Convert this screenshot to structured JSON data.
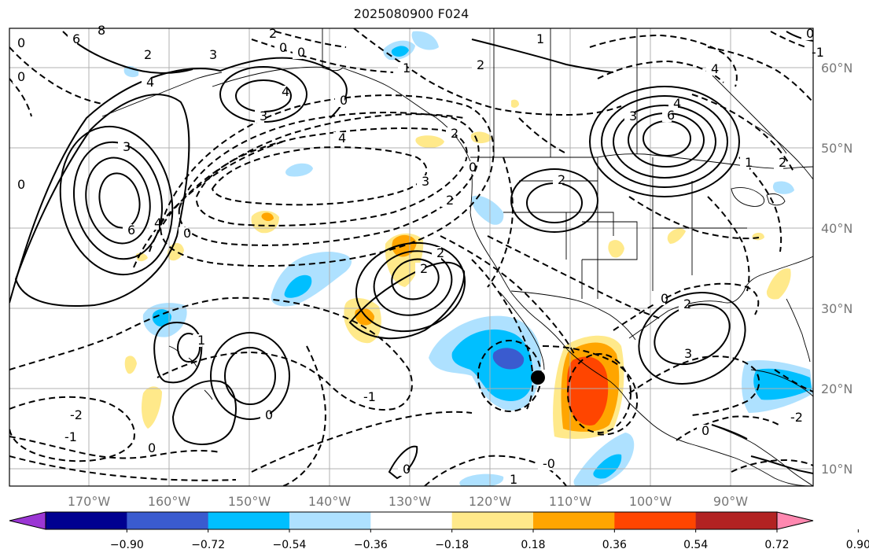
{
  "title": "2025080900 F024",
  "lon_labels": [
    "170°W",
    "160°W",
    "150°W",
    "140°W",
    "130°W",
    "120°W",
    "110°W",
    "100°W",
    "90°W"
  ],
  "lat_labels": [
    "60°N",
    "50°N",
    "40°N",
    "30°N",
    "20°N",
    "10°N"
  ],
  "colorbar": {
    "ticks": [
      "−0.90",
      "−0.72",
      "−0.54",
      "−0.36",
      "−0.18",
      "0.18",
      "0.36",
      "0.54",
      "0.72",
      "0.90"
    ],
    "colors": [
      "#9b36d4",
      "#000090",
      "#3a5bcf",
      "#00bfff",
      "#aee1ff",
      "#ffffff",
      "#ffe98a",
      "#ffa500",
      "#ff4500",
      "#b22222",
      "#ff88b0"
    ]
  },
  "contour_labels": [
    {
      "text": "0"
    },
    {
      "text": "6"
    },
    {
      "text": "8"
    },
    {
      "text": "0"
    },
    {
      "text": "2"
    },
    {
      "text": "4"
    },
    {
      "text": "3"
    },
    {
      "text": "4"
    },
    {
      "text": "3"
    },
    {
      "text": "0"
    },
    {
      "text": "4"
    },
    {
      "text": "0"
    },
    {
      "text": "3"
    },
    {
      "text": "6"
    },
    {
      "text": "4"
    },
    {
      "text": "0"
    },
    {
      "text": "2"
    },
    {
      "text": "0"
    },
    {
      "text": "1"
    },
    {
      "text": "2"
    },
    {
      "text": "2"
    },
    {
      "text": "3"
    },
    {
      "text": "2"
    },
    {
      "text": "0"
    },
    {
      "text": "2"
    },
    {
      "text": "2"
    },
    {
      "text": "4"
    },
    {
      "text": "3"
    },
    {
      "text": "6"
    },
    {
      "text": "4"
    },
    {
      "text": "2"
    },
    {
      "text": "1"
    },
    {
      "text": "0"
    },
    {
      "text": "2"
    },
    {
      "text": "3"
    },
    {
      "text": "1"
    },
    {
      "text": "2"
    },
    {
      "text": "-2"
    },
    {
      "text": "-1"
    },
    {
      "text": "0"
    },
    {
      "text": "0"
    },
    {
      "text": "1"
    },
    {
      "text": "-1"
    },
    {
      "text": "0"
    },
    {
      "text": "-0"
    },
    {
      "text": "1"
    },
    {
      "text": "0"
    },
    {
      "text": "-1"
    },
    {
      "text": "0"
    },
    {
      "text": "0"
    },
    {
      "text": "-2"
    }
  ]
}
